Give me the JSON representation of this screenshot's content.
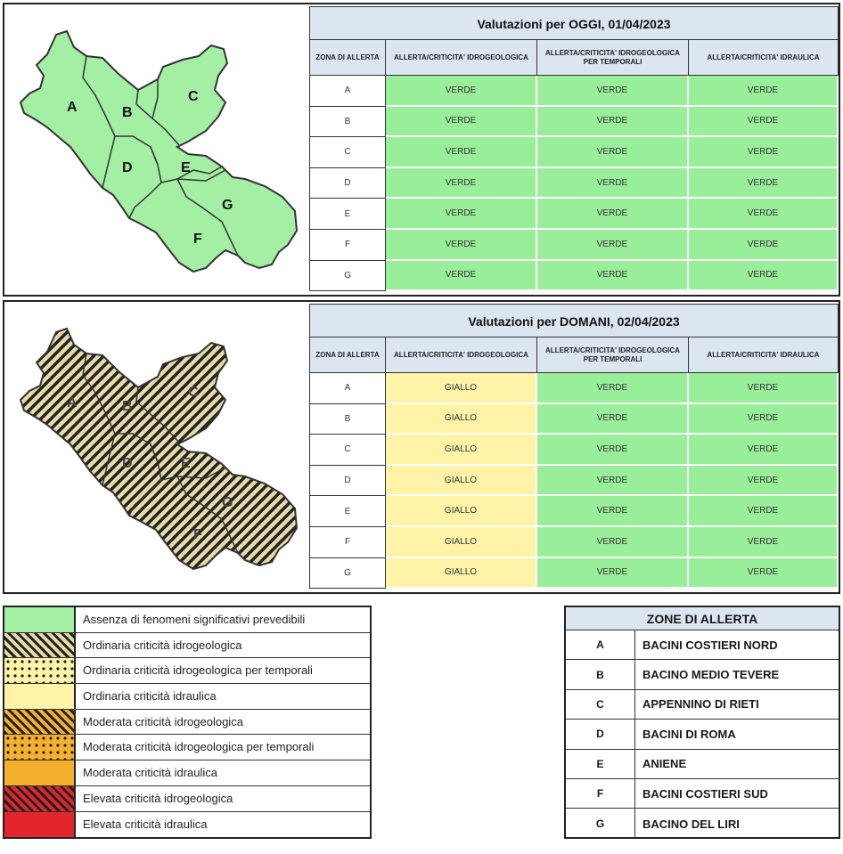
{
  "colors": {
    "verde": "#99ee99",
    "giallo": "#fff3a8",
    "header_bg": "#dce6f1",
    "map_green": "#a3efa3",
    "map_hatch": "#e6dca8",
    "orange": "#f5b02e",
    "red": "#e3262b"
  },
  "today": {
    "title": "Valutazioni per OGGI, 01/04/2023",
    "headers": [
      "ZONA DI ALLERTA",
      "ALLERTA/CRITICITA' IDROGEOLOGICA",
      "ALLERTA/CRITICITA' IDROGEOLOGICA PER TEMPORALI",
      "ALLERTA/CRITICITA' IDRAULICA"
    ],
    "rows": [
      {
        "zone": "A",
        "idro": "VERDE",
        "temp": "VERDE",
        "idra": "VERDE"
      },
      {
        "zone": "B",
        "idro": "VERDE",
        "temp": "VERDE",
        "idra": "VERDE"
      },
      {
        "zone": "C",
        "idro": "VERDE",
        "temp": "VERDE",
        "idra": "VERDE"
      },
      {
        "zone": "D",
        "idro": "VERDE",
        "temp": "VERDE",
        "idra": "VERDE"
      },
      {
        "zone": "E",
        "idro": "VERDE",
        "temp": "VERDE",
        "idra": "VERDE"
      },
      {
        "zone": "F",
        "idro": "VERDE",
        "temp": "VERDE",
        "idra": "VERDE"
      },
      {
        "zone": "G",
        "idro": "VERDE",
        "temp": "VERDE",
        "idra": "VERDE"
      }
    ]
  },
  "tomorrow": {
    "title": "Valutazioni per DOMANI, 02/04/2023",
    "headers": [
      "ZONA DI ALLERTA",
      "ALLERTA/CRITICITA' IDROGEOLOGICA",
      "ALLERTA/CRITICITA' IDROGEOLOGICA PER TEMPORALI",
      "ALLERTA/CRITICITA' IDRAULICA"
    ],
    "rows": [
      {
        "zone": "A",
        "idro": "GIALLO",
        "temp": "VERDE",
        "idra": "VERDE"
      },
      {
        "zone": "B",
        "idro": "GIALLO",
        "temp": "VERDE",
        "idra": "VERDE"
      },
      {
        "zone": "C",
        "idro": "GIALLO",
        "temp": "VERDE",
        "idra": "VERDE"
      },
      {
        "zone": "D",
        "idro": "GIALLO",
        "temp": "VERDE",
        "idra": "VERDE"
      },
      {
        "zone": "E",
        "idro": "GIALLO",
        "temp": "VERDE",
        "idra": "VERDE"
      },
      {
        "zone": "F",
        "idro": "GIALLO",
        "temp": "VERDE",
        "idra": "VERDE"
      },
      {
        "zone": "G",
        "idro": "GIALLO",
        "temp": "VERDE",
        "idra": "VERDE"
      }
    ]
  },
  "map_labels": [
    "A",
    "B",
    "C",
    "D",
    "E",
    "F",
    "G"
  ],
  "legend": [
    {
      "text": "Assenza di fenomeni significativi prevedibili",
      "swatch": "green"
    },
    {
      "text": "Ordinaria criticità idrogeologica",
      "swatch": "yellow-hatch"
    },
    {
      "text": "Ordinaria criticità idrogeologica per temporali",
      "swatch": "yellow-dots"
    },
    {
      "text": "Ordinaria criticità idraulica",
      "swatch": "yellow"
    },
    {
      "text": "Moderata criticità idrogeologica",
      "swatch": "orange-hatch"
    },
    {
      "text": "Moderata criticità idrogeologica per temporali",
      "swatch": "orange-dots"
    },
    {
      "text": "Moderata criticità idraulica",
      "swatch": "orange"
    },
    {
      "text": "Elevata criticità idrogeologica",
      "swatch": "red-hatch"
    },
    {
      "text": "Elevata criticità idraulica",
      "swatch": "red"
    }
  ],
  "zones": {
    "title": "ZONE DI ALLERTA",
    "items": [
      {
        "letter": "A",
        "name": "BACINI COSTIERI NORD"
      },
      {
        "letter": "B",
        "name": "BACINO MEDIO TEVERE"
      },
      {
        "letter": "C",
        "name": "APPENNINO DI RIETI"
      },
      {
        "letter": "D",
        "name": "BACINI DI ROMA"
      },
      {
        "letter": "E",
        "name": "ANIENE"
      },
      {
        "letter": "F",
        "name": "BACINI COSTIERI SUD"
      },
      {
        "letter": "G",
        "name": "BACINO DEL LIRI"
      }
    ]
  }
}
